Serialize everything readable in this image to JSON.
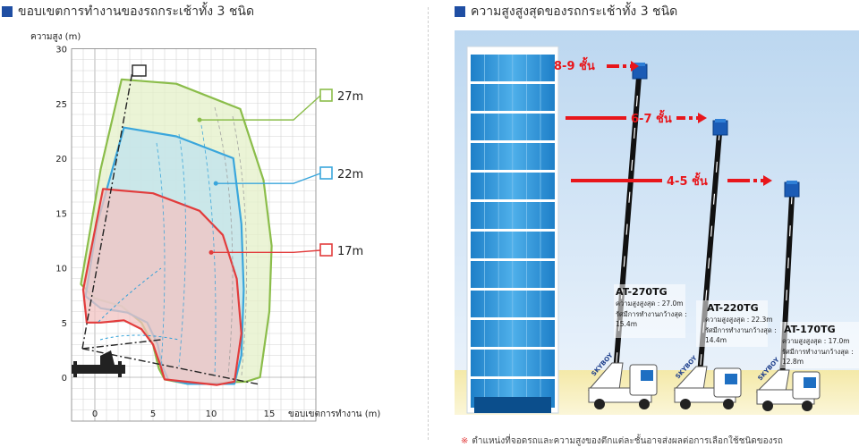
{
  "left_panel": {
    "title": "ขอบเขตการทำงานของรถกระเช้าทั้ง 3 ชนิด"
  },
  "right_panel": {
    "title": "ความสูงสูงสุดของรถกระเช้าทั้ง 3 ชนิด"
  },
  "chart_data": {
    "type": "area",
    "ylabel": "ความสูง (m)",
    "xlabel": "ขอบเขตการทำงาน (m)",
    "xlim": [
      -2,
      19
    ],
    "ylim": [
      -4,
      30
    ],
    "x_ticks": [
      0,
      5,
      10,
      15
    ],
    "y_ticks": [
      0,
      5,
      10,
      15,
      20,
      25,
      30
    ],
    "grid": true,
    "series": [
      {
        "name": "27m",
        "color": "#8bbd4a",
        "fill": "#e4f0c8",
        "points": [
          [
            2.3,
            27.2
          ],
          [
            7.0,
            26.8
          ],
          [
            12.5,
            24.5
          ],
          [
            14.5,
            18.0
          ],
          [
            15.2,
            12.0
          ],
          [
            15.0,
            6.0
          ],
          [
            14.2,
            0.0
          ],
          [
            13.0,
            -0.4
          ],
          [
            8.0,
            -0.6
          ],
          [
            6.0,
            -0.2
          ],
          [
            5.5,
            0.8
          ],
          [
            5.0,
            3.0
          ],
          [
            4.0,
            5.0
          ],
          [
            2.3,
            6.5
          ],
          [
            0.0,
            7.2
          ],
          [
            -1.2,
            8.5
          ],
          [
            0.5,
            19.0
          ]
        ]
      },
      {
        "name": "22m",
        "color": "#3aa6dc",
        "fill": "#bfe3ef",
        "points": [
          [
            2.5,
            22.8
          ],
          [
            7.0,
            22.0
          ],
          [
            11.9,
            20.0
          ],
          [
            12.6,
            14.0
          ],
          [
            12.8,
            8.0
          ],
          [
            12.6,
            2.0
          ],
          [
            12.0,
            -0.6
          ],
          [
            8.0,
            -0.6
          ],
          [
            6.3,
            -0.2
          ],
          [
            5.8,
            1.0
          ],
          [
            5.4,
            3.0
          ],
          [
            4.5,
            5.0
          ],
          [
            2.8,
            5.9
          ],
          [
            0.5,
            6.3
          ],
          [
            -0.8,
            7.4
          ],
          [
            0.2,
            14.0
          ]
        ]
      },
      {
        "name": "17m",
        "color": "#e23c3c",
        "fill": "#f1c3c1",
        "points": [
          [
            0.7,
            17.2
          ],
          [
            5.0,
            16.8
          ],
          [
            9.0,
            15.2
          ],
          [
            11.0,
            13.0
          ],
          [
            12.2,
            9.0
          ],
          [
            12.6,
            4.0
          ],
          [
            12.0,
            -0.4
          ],
          [
            10.5,
            -0.7
          ],
          [
            6.0,
            -0.2
          ],
          [
            5.6,
            1.2
          ],
          [
            5.0,
            3.0
          ],
          [
            4.0,
            4.4
          ],
          [
            2.5,
            5.2
          ],
          [
            0.5,
            5.0
          ],
          [
            -0.7,
            5.0
          ],
          [
            -1.0,
            8.0
          ]
        ]
      }
    ],
    "callouts": [
      {
        "label": "27m",
        "color": "#8bbd4a",
        "anchor": [
          9.0,
          23.5
        ]
      },
      {
        "label": "22m",
        "color": "#3aa6dc",
        "anchor": [
          10.4,
          17.7
        ]
      },
      {
        "label": "17m",
        "color": "#e23c3c",
        "anchor": [
          10.0,
          11.4
        ]
      }
    ]
  },
  "scene": {
    "floor_labels": [
      "8-9 ชั้น",
      "6-7 ชั้น",
      "4-5 ชั้น"
    ],
    "trucks": [
      {
        "model": "AT-270TG",
        "max_height": "ความสูงสูงสุด : 27.0m",
        "max_reach_label": "รัศมีการทำงานกว้างสุด :",
        "max_reach": "15.4m"
      },
      {
        "model": "AT-220TG",
        "max_height": "ความสูงสูงสุด : 22.3m",
        "max_reach_label": "รัศมีการทำงานกว้างสุด :",
        "max_reach": "14.4m"
      },
      {
        "model": "AT-170TG",
        "max_height": "ความสูงสูงสุด : 17.0m",
        "max_reach_label": "รัศมีการทำงานกว้างสุด :",
        "max_reach": "12.8m"
      }
    ],
    "truck_brand": "SKYBOY",
    "note": "ตำแหน่งที่จอดรถและความสูงของตึกแต่ละชั้นอาจส่งผลต่อการเลือกใช้ชนิดของรถ",
    "note_mark": "※"
  }
}
